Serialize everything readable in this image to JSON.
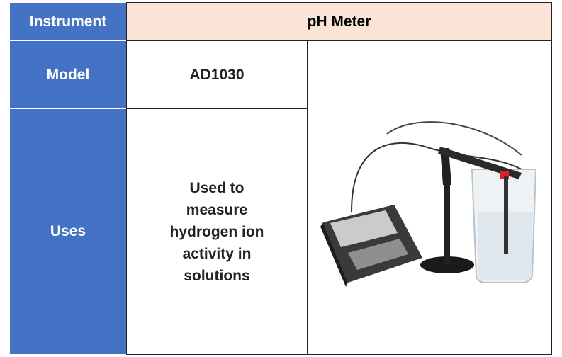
{
  "table": {
    "rows": [
      [
        "Instrument",
        "pH Meter"
      ],
      [
        "Model",
        "AD1030"
      ],
      [
        "Uses",
        "Used to measure hydrogen ion activity in solutions"
      ]
    ]
  }
}
